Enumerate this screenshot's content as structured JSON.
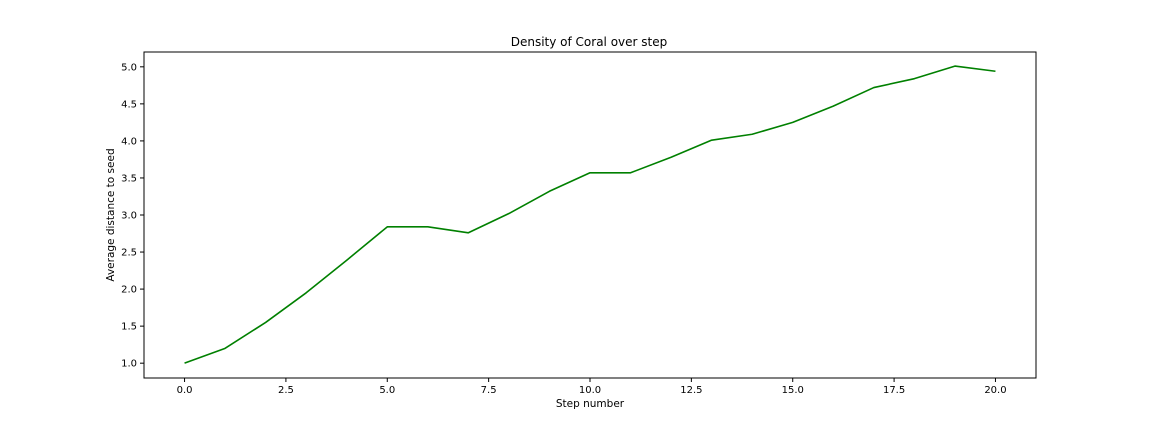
{
  "chart_data": {
    "type": "line",
    "title": "Density of Coral over step",
    "xlabel": "Step number",
    "ylabel": "Average distance to seed",
    "xlim": [
      -1.0,
      21.0
    ],
    "ylim": [
      0.8,
      5.2
    ],
    "xticks": [
      0.0,
      2.5,
      5.0,
      7.5,
      10.0,
      12.5,
      15.0,
      17.5,
      20.0
    ],
    "xtick_labels": [
      "0.0",
      "2.5",
      "5.0",
      "7.5",
      "10.0",
      "12.5",
      "15.0",
      "17.5",
      "20.0"
    ],
    "yticks": [
      1.0,
      1.5,
      2.0,
      2.5,
      3.0,
      3.5,
      4.0,
      4.5,
      5.0
    ],
    "ytick_labels": [
      "1.0",
      "1.5",
      "2.0",
      "2.5",
      "3.0",
      "3.5",
      "4.0",
      "4.5",
      "5.0"
    ],
    "grid": false,
    "legend": "none",
    "series": [
      {
        "color": "#008000",
        "x": [
          0,
          1,
          2,
          3,
          4,
          5,
          6,
          7,
          8,
          9,
          10,
          11,
          12,
          13,
          14,
          15,
          16,
          17,
          18,
          19,
          20
        ],
        "y": [
          1.0,
          1.2,
          1.55,
          1.95,
          2.39,
          2.84,
          2.84,
          2.76,
          3.02,
          3.32,
          3.57,
          3.57,
          3.78,
          4.01,
          4.09,
          4.25,
          4.47,
          4.72,
          4.84,
          5.01,
          4.94
        ]
      }
    ]
  }
}
